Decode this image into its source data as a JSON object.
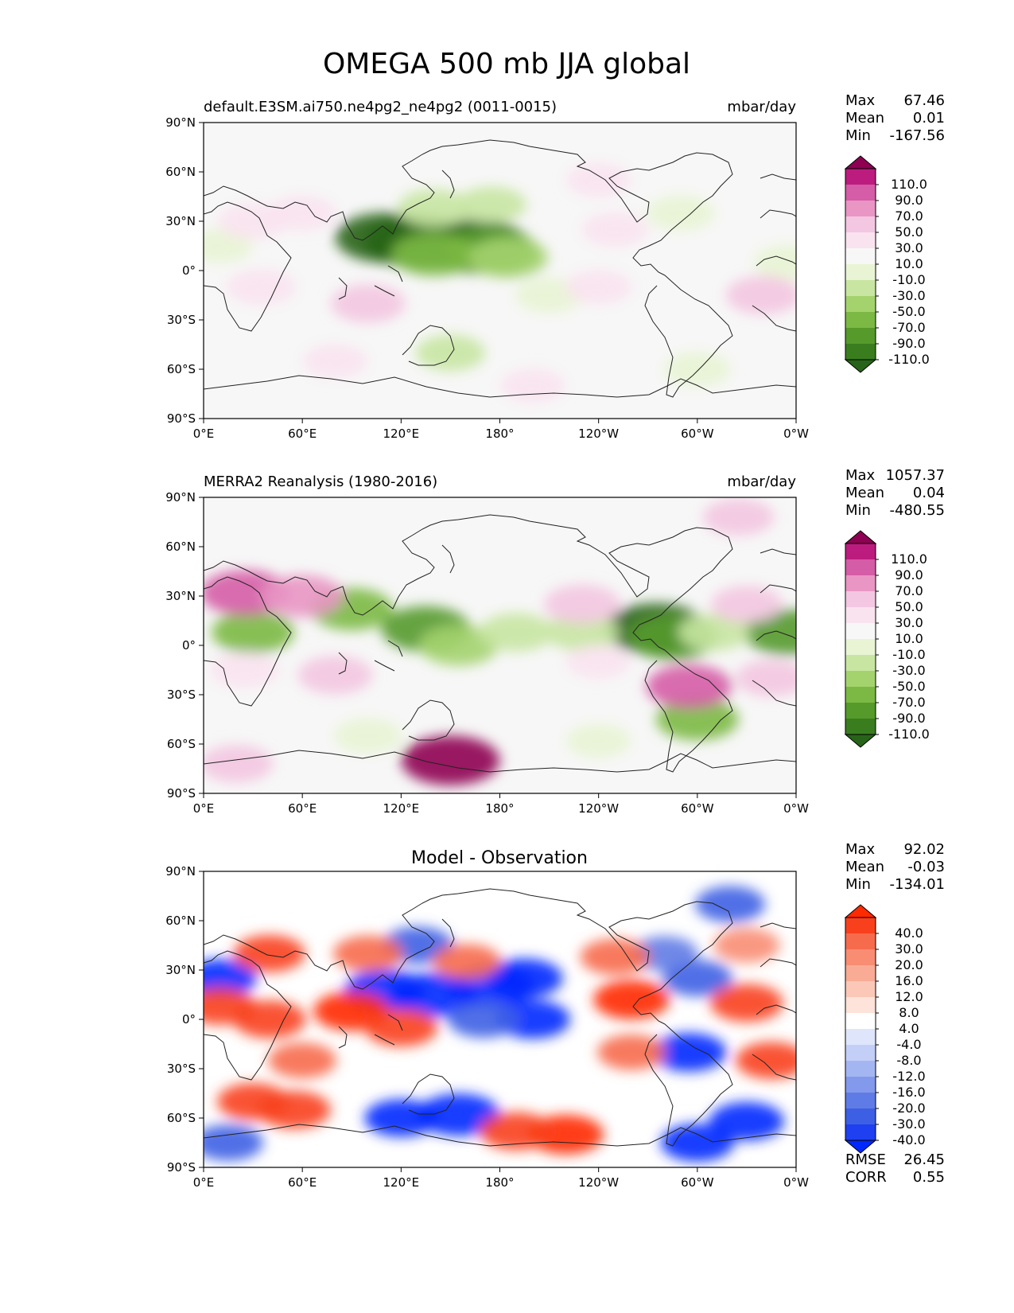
{
  "figure": {
    "title": "OMEGA 500 mb JJA global"
  },
  "axis_ticks": {
    "lat": [
      "90°N",
      "60°N",
      "30°N",
      "0°",
      "30°S",
      "60°S",
      "90°S"
    ],
    "lon": [
      "0°E",
      "60°E",
      "120°E",
      "180°",
      "120°W",
      "60°W",
      "0°W"
    ]
  },
  "panels": [
    {
      "left_title": "default.E3SM.ai750.ne4pg2_ne4pg2 (0011-0015)",
      "center_title": "",
      "units": "mbar/day",
      "stats": [
        {
          "label": "Max",
          "value": "67.46"
        },
        {
          "label": "Mean",
          "value": "0.01"
        },
        {
          "label": "Min",
          "value": "-167.56"
        }
      ],
      "colorbar": {
        "ticks": [
          "110.0",
          "90.0",
          "70.0",
          "50.0",
          "30.0",
          "10.0",
          "-10.0",
          "-30.0",
          "-50.0",
          "-70.0",
          "-90.0",
          "-110.0"
        ],
        "colors": [
          "#8e0152",
          "#bc1c7e",
          "#d55ca6",
          "#e996c4",
          "#f3c7e1",
          "#f9e3ef",
          "#f7f7f7",
          "#e8f4d4",
          "#c8e6a2",
          "#a4d36e",
          "#7cb944",
          "#559a2b",
          "#3a7d1f",
          "#276419"
        ]
      },
      "fields": [
        {
          "lon": 130,
          "lat": 18,
          "value": -150
        },
        {
          "lon": 165,
          "lat": 15,
          "value": -150
        },
        {
          "lon": 110,
          "lat": 20,
          "value": -120
        },
        {
          "lon": 175,
          "lat": 12,
          "value": -100
        },
        {
          "lon": 140,
          "lat": 10,
          "value": -80
        },
        {
          "lon": 185,
          "lat": 8,
          "value": -60
        },
        {
          "lon": 140,
          "lat": 38,
          "value": -40
        },
        {
          "lon": 175,
          "lat": 40,
          "value": -30
        },
        {
          "lon": 210,
          "lat": -15,
          "value": -25
        },
        {
          "lon": 290,
          "lat": 35,
          "value": -25
        },
        {
          "lon": 150,
          "lat": -50,
          "value": -30
        },
        {
          "lon": 300,
          "lat": -60,
          "value": -20
        },
        {
          "lon": 10,
          "lat": 15,
          "value": -15
        },
        {
          "lon": 355,
          "lat": 5,
          "value": -25
        },
        {
          "lon": 100,
          "lat": -20,
          "value": 45
        },
        {
          "lon": 35,
          "lat": -10,
          "value": 30
        },
        {
          "lon": 240,
          "lat": -10,
          "value": 20
        },
        {
          "lon": 340,
          "lat": -15,
          "value": 45
        },
        {
          "lon": 30,
          "lat": 30,
          "value": 30
        },
        {
          "lon": 60,
          "lat": 35,
          "value": 25
        },
        {
          "lon": 250,
          "lat": 25,
          "value": 20
        },
        {
          "lon": 240,
          "lat": 55,
          "value": 15
        },
        {
          "lon": 200,
          "lat": -70,
          "value": 15
        },
        {
          "lon": 80,
          "lat": -55,
          "value": 15
        }
      ]
    },
    {
      "left_title": "MERRA2 Reanalysis (1980-2016)",
      "center_title": "",
      "units": "mbar/day",
      "stats": [
        {
          "label": "Max",
          "value": "1057.37"
        },
        {
          "label": "Mean",
          "value": "0.04"
        },
        {
          "label": "Min",
          "value": "-480.55"
        }
      ],
      "colorbar": {
        "ticks": [
          "110.0",
          "90.0",
          "70.0",
          "50.0",
          "30.0",
          "10.0",
          "-10.0",
          "-30.0",
          "-50.0",
          "-70.0",
          "-90.0",
          "-110.0"
        ],
        "colors": [
          "#8e0152",
          "#bc1c7e",
          "#d55ca6",
          "#e996c4",
          "#f3c7e1",
          "#f9e3ef",
          "#f7f7f7",
          "#e8f4d4",
          "#c8e6a2",
          "#a4d36e",
          "#7cb944",
          "#559a2b",
          "#3a7d1f",
          "#276419"
        ]
      },
      "fields": [
        {
          "lon": 275,
          "lat": 10,
          "value": -130
        },
        {
          "lon": 285,
          "lat": 5,
          "value": -90
        },
        {
          "lon": 355,
          "lat": 8,
          "value": -90
        },
        {
          "lon": 30,
          "lat": 8,
          "value": -70
        },
        {
          "lon": 90,
          "lat": 22,
          "value": -70
        },
        {
          "lon": 135,
          "lat": 10,
          "value": -90
        },
        {
          "lon": 155,
          "lat": 0,
          "value": -60
        },
        {
          "lon": 190,
          "lat": 8,
          "value": -45
        },
        {
          "lon": 230,
          "lat": 8,
          "value": -40
        },
        {
          "lon": 310,
          "lat": 8,
          "value": -35
        },
        {
          "lon": 300,
          "lat": -45,
          "value": -70
        },
        {
          "lon": 100,
          "lat": -55,
          "value": -25
        },
        {
          "lon": 240,
          "lat": -58,
          "value": -15
        },
        {
          "lon": 25,
          "lat": 32,
          "value": 90
        },
        {
          "lon": 60,
          "lat": 30,
          "value": 70
        },
        {
          "lon": 150,
          "lat": -70,
          "value": 120
        },
        {
          "lon": 20,
          "lat": -72,
          "value": 40
        },
        {
          "lon": 230,
          "lat": 25,
          "value": 50
        },
        {
          "lon": 295,
          "lat": -25,
          "value": 80
        },
        {
          "lon": 80,
          "lat": -18,
          "value": 45
        },
        {
          "lon": 25,
          "lat": -15,
          "value": 30
        },
        {
          "lon": 345,
          "lat": -20,
          "value": 35
        },
        {
          "lon": 330,
          "lat": 25,
          "value": 35
        },
        {
          "lon": 325,
          "lat": 78,
          "value": 35
        },
        {
          "lon": 240,
          "lat": -10,
          "value": 15
        }
      ]
    },
    {
      "left_title": "",
      "center_title": "Model - Observation",
      "units": "",
      "stats": [
        {
          "label": "Max",
          "value": "92.02"
        },
        {
          "label": "Mean",
          "value": "-0.03"
        },
        {
          "label": "Min",
          "value": "-134.01"
        }
      ],
      "colorbar": {
        "ticks": [
          "40.0",
          "30.0",
          "20.0",
          "16.0",
          "12.0",
          "8.0",
          "4.0",
          "-4.0",
          "-8.0",
          "-12.0",
          "-16.0",
          "-20.0",
          "-30.0",
          "-40.0"
        ],
        "colors": [
          "#ff2a00",
          "#f8411c",
          "#f76b4d",
          "#f88d73",
          "#f9ab95",
          "#fbc8b8",
          "#fde3d9",
          "#ffffff",
          "#dfe5fb",
          "#c4cff8",
          "#a4b6f2",
          "#8299ec",
          "#5f7ce6",
          "#3d5fe4",
          "#1e40f0",
          "#0028ff"
        ]
      },
      "fields": [
        {
          "lon": 140,
          "lat": 15,
          "value": -80
        },
        {
          "lon": 175,
          "lat": 20,
          "value": -80
        },
        {
          "lon": 110,
          "lat": 18,
          "value": -60
        },
        {
          "lon": 195,
          "lat": 25,
          "value": -50
        },
        {
          "lon": 200,
          "lat": 0,
          "value": -45
        },
        {
          "lon": 170,
          "lat": 0,
          "value": -35
        },
        {
          "lon": 130,
          "lat": 45,
          "value": -35
        },
        {
          "lon": 155,
          "lat": -58,
          "value": -70
        },
        {
          "lon": 120,
          "lat": -60,
          "value": -40
        },
        {
          "lon": 330,
          "lat": -62,
          "value": -45
        },
        {
          "lon": 300,
          "lat": -75,
          "value": -40
        },
        {
          "lon": 10,
          "lat": 25,
          "value": -40
        },
        {
          "lon": 295,
          "lat": -20,
          "value": -45
        },
        {
          "lon": 300,
          "lat": 25,
          "value": -30
        },
        {
          "lon": 320,
          "lat": 70,
          "value": -30
        },
        {
          "lon": 280,
          "lat": 40,
          "value": -20
        },
        {
          "lon": 15,
          "lat": -75,
          "value": -30
        },
        {
          "lon": 90,
          "lat": 5,
          "value": 50
        },
        {
          "lon": 120,
          "lat": -5,
          "value": 40
        },
        {
          "lon": 40,
          "lat": 0,
          "value": 40
        },
        {
          "lon": 260,
          "lat": 12,
          "value": 50
        },
        {
          "lon": 330,
          "lat": 10,
          "value": 40
        },
        {
          "lon": 10,
          "lat": 8,
          "value": 35
        },
        {
          "lon": 220,
          "lat": -70,
          "value": 50
        },
        {
          "lon": 190,
          "lat": -68,
          "value": 40
        },
        {
          "lon": 30,
          "lat": -50,
          "value": 35
        },
        {
          "lon": 55,
          "lat": -55,
          "value": 40
        },
        {
          "lon": 100,
          "lat": 40,
          "value": 30
        },
        {
          "lon": 40,
          "lat": 40,
          "value": 35
        },
        {
          "lon": 160,
          "lat": 35,
          "value": 25
        },
        {
          "lon": 250,
          "lat": 38,
          "value": 30
        },
        {
          "lon": 260,
          "lat": -20,
          "value": 25
        },
        {
          "lon": 345,
          "lat": -25,
          "value": 35
        },
        {
          "lon": 60,
          "lat": -25,
          "value": 25
        },
        {
          "lon": 330,
          "lat": 45,
          "value": 20
        }
      ],
      "footer_stats": [
        {
          "label": "RMSE",
          "value": "26.45"
        },
        {
          "label": "CORR",
          "value": "0.55"
        }
      ]
    }
  ]
}
